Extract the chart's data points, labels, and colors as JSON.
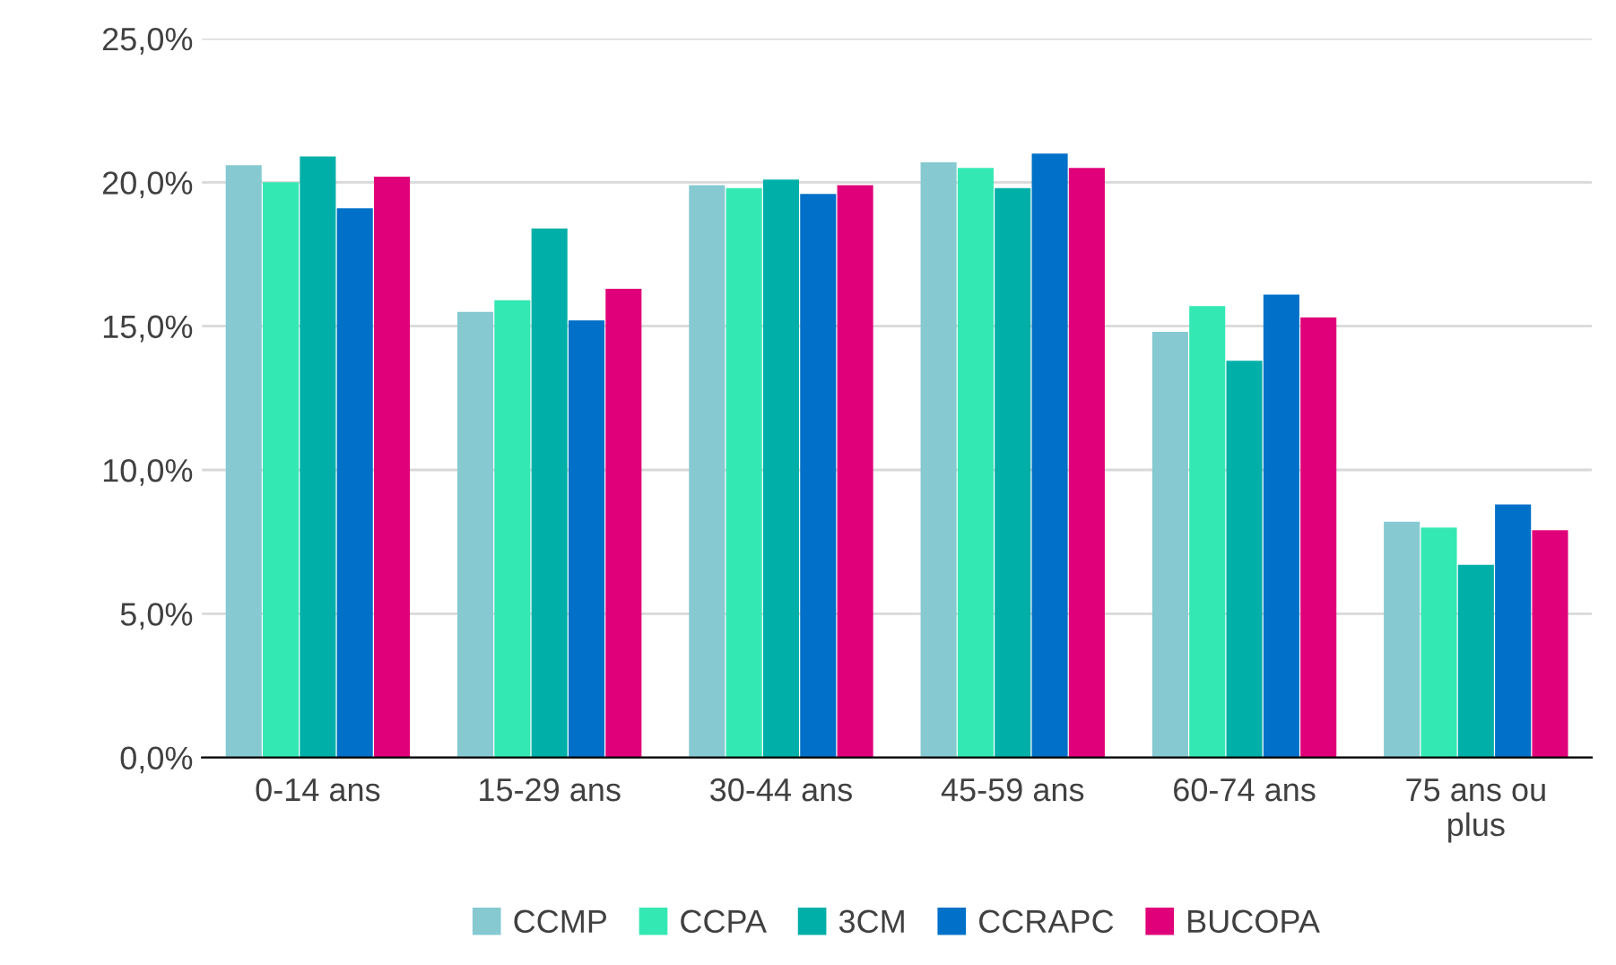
{
  "chart_data": {
    "type": "bar",
    "categories": [
      "0-14 ans",
      "15-29 ans",
      "30-44 ans",
      "45-59 ans",
      "60-74 ans",
      "75 ans ou\nplus"
    ],
    "series": [
      {
        "name": "CCMP",
        "color": "#86c9d1",
        "values": [
          20.6,
          15.5,
          19.9,
          20.7,
          14.8,
          8.2
        ]
      },
      {
        "name": "CCPA",
        "color": "#34e8b4",
        "values": [
          20.0,
          15.9,
          19.8,
          20.5,
          15.7,
          8.0
        ]
      },
      {
        "name": "3CM",
        "color": "#00b0a8",
        "values": [
          20.9,
          18.4,
          20.1,
          19.8,
          13.8,
          6.7
        ]
      },
      {
        "name": "CCRAPC",
        "color": "#0070c8",
        "values": [
          19.1,
          15.2,
          19.6,
          21.0,
          16.1,
          8.8
        ]
      },
      {
        "name": "BUCOPA",
        "color": "#e0007a",
        "values": [
          20.2,
          16.3,
          19.9,
          20.5,
          15.3,
          7.9
        ]
      }
    ],
    "ylim": [
      0,
      25
    ],
    "yticks": [
      {
        "value": 0,
        "label": "0,0%"
      },
      {
        "value": 5,
        "label": "5,0%"
      },
      {
        "value": 10,
        "label": "10,0%"
      },
      {
        "value": 15,
        "label": "15,0%"
      },
      {
        "value": 20,
        "label": "20,0%"
      },
      {
        "value": 25,
        "label": "25,0%"
      }
    ],
    "grid": "y",
    "legend": "bottom"
  }
}
